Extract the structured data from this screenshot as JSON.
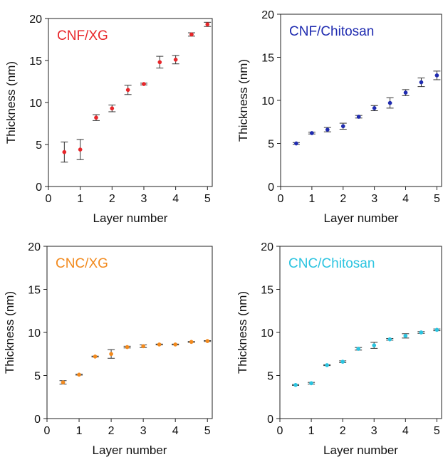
{
  "chart_data": [
    {
      "type": "scatter",
      "title": "CNF/XG",
      "color": "#e8262a",
      "xlabel": "Layer number",
      "ylabel": "Thickness (nm)",
      "xlim": [
        0,
        5.15
      ],
      "ylim": [
        0,
        20
      ],
      "xticks": [
        0,
        1,
        2,
        3,
        4,
        5
      ],
      "yticks": [
        0,
        5,
        10,
        15,
        20
      ],
      "x": [
        0.5,
        1,
        1.5,
        2,
        2.5,
        3,
        3.5,
        4,
        4.5,
        5
      ],
      "y": [
        4.1,
        4.4,
        8.2,
        9.3,
        11.5,
        12.2,
        14.8,
        15.1,
        18.1,
        19.3
      ],
      "yerr": [
        1.2,
        1.2,
        0.35,
        0.4,
        0.55,
        0.1,
        0.7,
        0.5,
        0.2,
        0.25
      ]
    },
    {
      "type": "scatter",
      "title": "CNF/Chitosan",
      "color": "#1f2bb0",
      "xlabel": "Layer number",
      "ylabel": "Thickness (nm)",
      "xlim": [
        0,
        5.15
      ],
      "ylim": [
        0,
        20
      ],
      "xticks": [
        0,
        1,
        2,
        3,
        4,
        5
      ],
      "yticks": [
        0,
        5,
        10,
        15,
        20
      ],
      "x": [
        0.5,
        1,
        1.5,
        2,
        2.5,
        3,
        3.5,
        4,
        4.5,
        5
      ],
      "y": [
        5.0,
        6.2,
        6.6,
        7.0,
        8.1,
        9.1,
        9.7,
        10.9,
        12.1,
        12.9
      ],
      "yerr": [
        0.1,
        0.1,
        0.25,
        0.35,
        0.15,
        0.3,
        0.6,
        0.35,
        0.5,
        0.5
      ]
    },
    {
      "type": "scatter",
      "title": "CNC/XG",
      "color": "#f28a1e",
      "xlabel": "Layer number",
      "ylabel": "Thickness (nm)",
      "xlim": [
        0,
        5.15
      ],
      "ylim": [
        0,
        20
      ],
      "xticks": [
        0,
        1,
        2,
        3,
        4,
        5
      ],
      "yticks": [
        0,
        5,
        10,
        15,
        20
      ],
      "x": [
        0.5,
        1,
        1.5,
        2,
        2.5,
        3,
        3.5,
        4,
        4.5,
        5
      ],
      "y": [
        4.2,
        5.1,
        7.2,
        7.5,
        8.3,
        8.4,
        8.6,
        8.6,
        8.9,
        9.0
      ],
      "yerr": [
        0.2,
        0.05,
        0.05,
        0.5,
        0.1,
        0.15,
        0.05,
        0.05,
        0.05,
        0.05
      ]
    },
    {
      "type": "scatter",
      "title": "CNC/Chitosan",
      "color": "#2bc4e0",
      "xlabel": "Layer number",
      "ylabel": "Thickness (nm)",
      "xlim": [
        0,
        5.15
      ],
      "ylim": [
        0,
        20
      ],
      "xticks": [
        0,
        1,
        2,
        3,
        4,
        5
      ],
      "yticks": [
        0,
        5,
        10,
        15,
        20
      ],
      "x": [
        0.5,
        1,
        1.5,
        2,
        2.5,
        3,
        3.5,
        4,
        4.5,
        5
      ],
      "y": [
        3.9,
        4.1,
        6.2,
        6.6,
        8.1,
        8.5,
        9.2,
        9.6,
        10.0,
        10.3
      ],
      "yerr": [
        0.05,
        0.1,
        0.05,
        0.1,
        0.15,
        0.35,
        0.1,
        0.25,
        0.1,
        0.1
      ]
    }
  ]
}
